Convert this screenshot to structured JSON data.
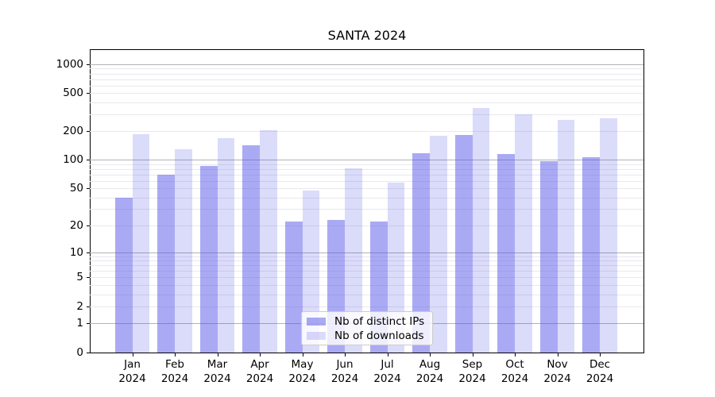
{
  "chart_data": {
    "type": "bar",
    "title": "SANTA 2024",
    "categories": [
      "Jan 2024",
      "Feb 2024",
      "Mar 2024",
      "Apr 2024",
      "May 2024",
      "Jun 2024",
      "Jul 2024",
      "Aug 2024",
      "Sep 2024",
      "Oct 2024",
      "Nov 2024",
      "Dec 2024"
    ],
    "series": [
      {
        "name": "Nb of distinct IPs",
        "values": [
          40,
          70,
          87,
          141,
          22,
          23,
          22,
          118,
          181,
          115,
          97,
          107
        ]
      },
      {
        "name": "Nb of downloads",
        "values": [
          185,
          130,
          170,
          204,
          47,
          82,
          58,
          178,
          348,
          298,
          261,
          270
        ]
      }
    ],
    "xlabel": "",
    "ylabel": "",
    "grid": true,
    "legend_position": "lower-center",
    "y_axis": {
      "scale": "log1p",
      "ylim": [
        0,
        1430
      ],
      "tick_values": [
        0,
        1,
        2,
        5,
        10,
        20,
        50,
        100,
        200,
        500,
        1000
      ],
      "tick_labels": [
        "0",
        "1",
        "2",
        "5",
        "10",
        "20",
        "50",
        "100",
        "200",
        "500",
        "1000"
      ],
      "major_gridlines": [
        1,
        10,
        100,
        1000
      ],
      "minor_gridlines": [
        2,
        3,
        4,
        5,
        6,
        7,
        8,
        9,
        20,
        30,
        40,
        50,
        60,
        70,
        80,
        90,
        200,
        300,
        400,
        500,
        600,
        700,
        800,
        900
      ]
    },
    "colors": {
      "bar_base": "#4d4de8",
      "bar_distinct_ips": "rgba(77,77,232,0.48)",
      "bar_downloads": "rgba(77,77,232,0.20)",
      "grid_major": "#b2b2b8",
      "grid_minor": "#e9e9ef",
      "axis": "#000000"
    }
  }
}
